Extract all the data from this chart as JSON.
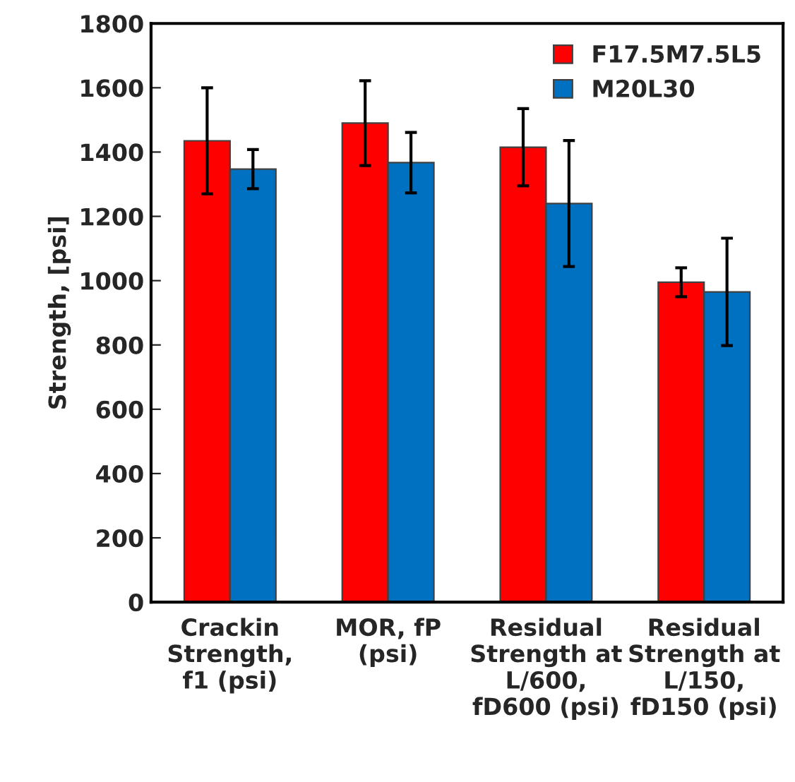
{
  "chart_data": {
    "type": "bar",
    "ylabel": "Strength, [psi]",
    "categories": [
      "Crackin\nStrength,\nf1 (psi)",
      "MOR, fP\n(psi)",
      "Residual\nStrength at\nL/600,\nfD600 (psi)",
      "Residual\nStrength at\nL/150,\nfD150 (psi)"
    ],
    "series": [
      {
        "name": "F17.5M7.5L5",
        "color": "#ff0000",
        "values": [
          1435,
          1490,
          1415,
          995
        ],
        "errors": [
          165,
          132,
          120,
          45
        ]
      },
      {
        "name": "M20L30",
        "color": "#0070c0",
        "values": [
          1347,
          1367,
          1240,
          965
        ],
        "errors": [
          61,
          94,
          196,
          167
        ]
      }
    ],
    "ylim": [
      0,
      1800
    ],
    "yticks": [
      0,
      200,
      400,
      600,
      800,
      1000,
      1200,
      1400,
      1600,
      1800
    ],
    "grid": false,
    "legend": "top right"
  }
}
